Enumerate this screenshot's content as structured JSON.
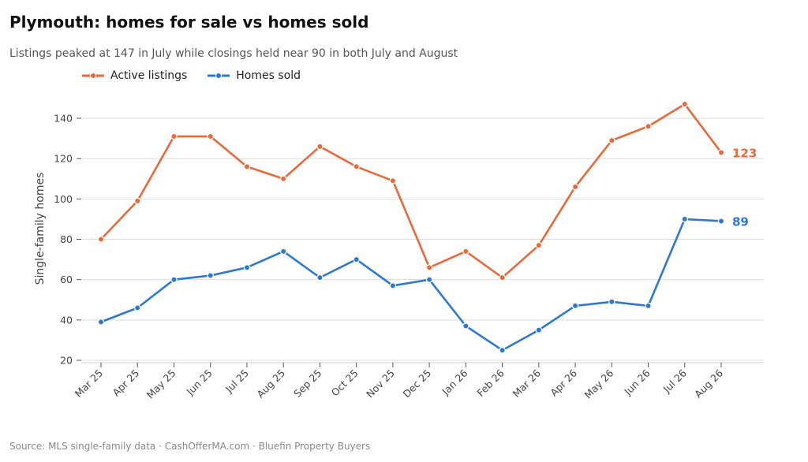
{
  "title": "Plymouth: homes for sale vs homes sold",
  "subtitle": "Listings peaked at 147 in July while closings held near 90 in both July and August",
  "source": "Source: MLS single-family data  ·  CashOfferMA.com  ·  Bluefin Property Buyers",
  "chart_data": {
    "type": "line",
    "title": "Plymouth: homes for sale vs homes sold",
    "subtitle": "Listings peaked at 147 in July while closings held near 90 in both July and August",
    "xlabel": "",
    "ylabel": "Single-family homes",
    "categories": [
      "Mar 25",
      "Apr 25",
      "May 25",
      "Jun 25",
      "Jul 25",
      "Aug 25",
      "Sep 25",
      "Oct 25",
      "Nov 25",
      "Dec 25",
      "Jan 26",
      "Feb 26",
      "Mar 26",
      "Apr 26",
      "May 26",
      "Jun 26",
      "Jul 26",
      "Aug 26"
    ],
    "ylim": [
      20,
      150
    ],
    "yticks": [
      20,
      40,
      60,
      80,
      100,
      120,
      140
    ],
    "grid": true,
    "legend_position": "top-left",
    "series": [
      {
        "name": "Active listings",
        "color": "#e8693a",
        "end_label": "123",
        "values": [
          80,
          99,
          131,
          131,
          116,
          110,
          126,
          116,
          109,
          66,
          74,
          61,
          77,
          106,
          129,
          136,
          147,
          123
        ]
      },
      {
        "name": "Homes sold",
        "color": "#2f78d0",
        "end_label": "89",
        "values": [
          39,
          46,
          60,
          62,
          66,
          74,
          61,
          70,
          57,
          60,
          37,
          25,
          35,
          47,
          49,
          47,
          90,
          89
        ]
      }
    ]
  }
}
